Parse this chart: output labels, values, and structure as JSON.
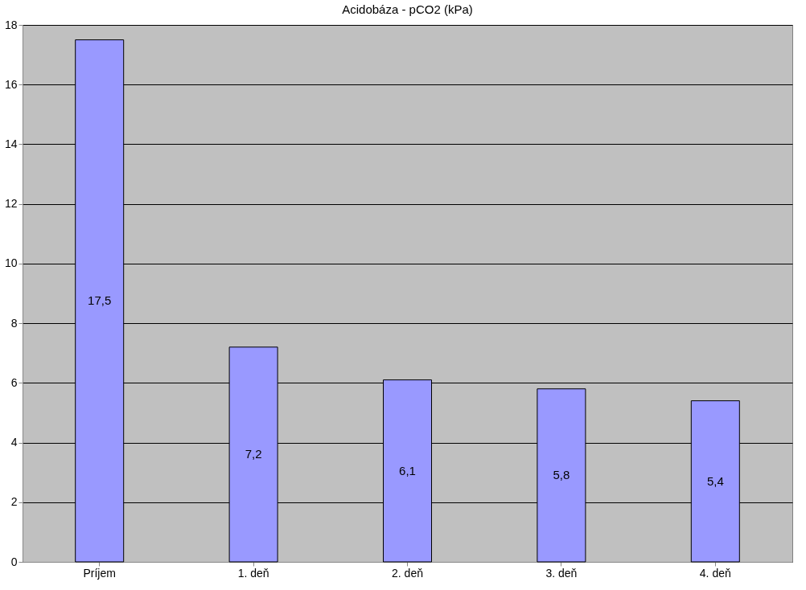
{
  "chart_data": {
    "type": "bar",
    "title": "Acidobáza - pCO2 (kPa)",
    "categories": [
      "Príjem",
      "1. deň",
      "2. deň",
      "3. deň",
      "4. deň"
    ],
    "values": [
      17.5,
      7.2,
      6.1,
      5.8,
      5.4
    ],
    "value_labels": [
      "17,5",
      "7,2",
      "6,1",
      "5,8",
      "5,4"
    ],
    "color": "#9999ff",
    "ylim": [
      0,
      18
    ],
    "yticks": [
      0,
      2,
      4,
      6,
      8,
      10,
      12,
      14,
      16,
      18
    ],
    "grid": "y"
  }
}
